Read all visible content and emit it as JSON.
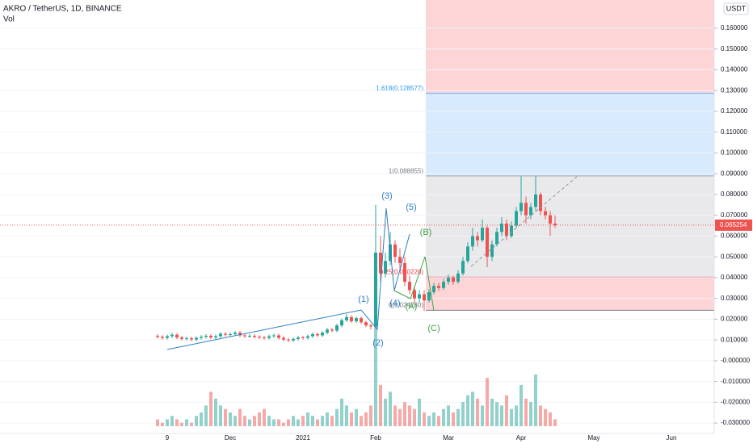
{
  "chart_data": {
    "type": "candlestick",
    "title": "AKRO / TetherUS, 1D, BINANCE",
    "subtitle": "Vol",
    "currency": "USDT",
    "up_color": "#26a69a",
    "down_color": "#ef5350",
    "categories": [
      null,
      null,
      "9",
      null,
      null,
      null,
      null,
      null,
      null,
      null,
      null,
      null,
      null,
      null,
      null,
      "Dec",
      null,
      null,
      null,
      null,
      null,
      null,
      null,
      null,
      null,
      null,
      null,
      null,
      null,
      null,
      "2021",
      null,
      null,
      null,
      null,
      null,
      null,
      null,
      null,
      null,
      null,
      null,
      null,
      null,
      null,
      "Feb",
      null,
      null,
      null,
      null,
      null,
      null,
      null,
      null,
      null,
      null,
      null,
      null,
      null,
      null,
      "Mar",
      null,
      null,
      null,
      null,
      null,
      null,
      null,
      null,
      null,
      null,
      null,
      null,
      null,
      null,
      "Apr",
      null,
      null,
      null,
      null,
      null,
      null,
      null,
      null,
      null,
      null,
      null,
      null,
      null,
      null,
      "May",
      null,
      null,
      null,
      null,
      null,
      null,
      null,
      null,
      null,
      null,
      null,
      null,
      null,
      null,
      null,
      "Jun"
    ],
    "ohlc": [
      [
        0.012,
        0.0128,
        0.0107,
        0.0115
      ],
      [
        0.0115,
        0.0123,
        0.0102,
        0.011
      ],
      [
        0.011,
        0.0126,
        0.0102,
        0.0118
      ],
      [
        0.0118,
        0.0133,
        0.011,
        0.0125
      ],
      [
        0.0125,
        0.0133,
        0.0104,
        0.0112
      ],
      [
        0.0112,
        0.012,
        0.0097,
        0.0105
      ],
      [
        0.0105,
        0.0116,
        0.0097,
        0.0108
      ],
      [
        0.0108,
        0.0116,
        0.0094,
        0.0102
      ],
      [
        0.0102,
        0.0118,
        0.0094,
        0.011
      ],
      [
        0.011,
        0.0123,
        0.0102,
        0.0115
      ],
      [
        0.0115,
        0.0128,
        0.0107,
        0.012
      ],
      [
        0.012,
        0.0128,
        0.0104,
        0.0112
      ],
      [
        0.0112,
        0.0126,
        0.0104,
        0.0118
      ],
      [
        0.0118,
        0.0138,
        0.011,
        0.013
      ],
      [
        0.013,
        0.0138,
        0.0117,
        0.0125
      ],
      [
        0.0125,
        0.0136,
        0.0117,
        0.0128
      ],
      [
        0.0128,
        0.0143,
        0.012,
        0.0135
      ],
      [
        0.0135,
        0.0143,
        0.0114,
        0.0122
      ],
      [
        0.0122,
        0.013,
        0.011,
        0.0118
      ],
      [
        0.0118,
        0.0128,
        0.011,
        0.012
      ],
      [
        0.012,
        0.0128,
        0.0107,
        0.0115
      ],
      [
        0.0115,
        0.0123,
        0.0104,
        0.0112
      ],
      [
        0.0112,
        0.012,
        0.0102,
        0.011
      ],
      [
        0.011,
        0.0126,
        0.0102,
        0.0118
      ],
      [
        0.0118,
        0.013,
        0.011,
        0.0122
      ],
      [
        0.0122,
        0.013,
        0.0102,
        0.011
      ],
      [
        0.011,
        0.0118,
        0.0094,
        0.0102
      ],
      [
        0.0102,
        0.011,
        0.009,
        0.0098
      ],
      [
        0.0098,
        0.0113,
        0.009,
        0.0105
      ],
      [
        0.0105,
        0.012,
        0.0097,
        0.0112
      ],
      [
        0.0112,
        0.012,
        0.0102,
        0.011
      ],
      [
        0.011,
        0.0126,
        0.0102,
        0.0118
      ],
      [
        0.0118,
        0.0136,
        0.011,
        0.0128
      ],
      [
        0.0128,
        0.0136,
        0.0114,
        0.0122
      ],
      [
        0.0122,
        0.0143,
        0.0114,
        0.0135
      ],
      [
        0.0135,
        0.0158,
        0.0127,
        0.015
      ],
      [
        0.015,
        0.0158,
        0.0137,
        0.0145
      ],
      [
        0.0145,
        0.0178,
        0.0137,
        0.017
      ],
      [
        0.017,
        0.0203,
        0.0162,
        0.0195
      ],
      [
        0.0195,
        0.0225,
        0.0187,
        0.021
      ],
      [
        0.021,
        0.0218,
        0.0182,
        0.019
      ],
      [
        0.019,
        0.0213,
        0.0182,
        0.0205
      ],
      [
        0.0205,
        0.0213,
        0.0177,
        0.0185
      ],
      [
        0.0185,
        0.0193,
        0.0162,
        0.017
      ],
      [
        0.017,
        0.0178,
        0.015,
        0.0165
      ],
      [
        0.0165,
        0.075,
        0.016,
        0.052
      ],
      [
        0.052,
        0.06,
        0.038,
        0.042
      ],
      [
        0.042,
        0.052,
        0.04,
        0.048
      ],
      [
        0.048,
        0.062,
        0.046,
        0.056
      ],
      [
        0.056,
        0.058,
        0.047,
        0.05
      ],
      [
        0.05,
        0.054,
        0.044,
        0.047
      ],
      [
        0.047,
        0.05,
        0.036,
        0.038
      ],
      [
        0.038,
        0.041,
        0.032,
        0.034
      ],
      [
        0.034,
        0.036,
        0.028,
        0.03
      ],
      [
        0.03,
        0.034,
        0.028,
        0.032
      ],
      [
        0.032,
        0.034,
        0.024,
        0.029
      ],
      [
        0.029,
        0.0345,
        0.028,
        0.033
      ],
      [
        0.033,
        0.0375,
        0.032,
        0.036
      ],
      [
        0.036,
        0.0375,
        0.0335,
        0.035
      ],
      [
        0.035,
        0.0395,
        0.034,
        0.038
      ],
      [
        0.038,
        0.0415,
        0.0365,
        0.04
      ],
      [
        0.04,
        0.041,
        0.0365,
        0.038
      ],
      [
        0.038,
        0.0435,
        0.037,
        0.042
      ],
      [
        0.042,
        0.05,
        0.041,
        0.048
      ],
      [
        0.048,
        0.057,
        0.047,
        0.055
      ],
      [
        0.055,
        0.064,
        0.053,
        0.06
      ],
      [
        0.06,
        0.062,
        0.055,
        0.058
      ],
      [
        0.058,
        0.068,
        0.057,
        0.064
      ],
      [
        0.064,
        0.065,
        0.045,
        0.05
      ],
      [
        0.05,
        0.058,
        0.048,
        0.056
      ],
      [
        0.056,
        0.064,
        0.055,
        0.062
      ],
      [
        0.062,
        0.069,
        0.06,
        0.066
      ],
      [
        0.066,
        0.068,
        0.058,
        0.06
      ],
      [
        0.06,
        0.067,
        0.059,
        0.065
      ],
      [
        0.065,
        0.074,
        0.064,
        0.072
      ],
      [
        0.072,
        0.0888,
        0.07,
        0.076
      ],
      [
        0.076,
        0.079,
        0.066,
        0.07
      ],
      [
        0.07,
        0.076,
        0.068,
        0.074
      ],
      [
        0.074,
        0.0888,
        0.072,
        0.08
      ],
      [
        0.08,
        0.081,
        0.07,
        0.072
      ],
      [
        0.072,
        0.074,
        0.068,
        0.07
      ],
      [
        0.07,
        0.072,
        0.06,
        0.066
      ],
      [
        0.066,
        0.07,
        0.064,
        0.0652
      ],
      null,
      null,
      null,
      null,
      null,
      null,
      null,
      null,
      null,
      null,
      null,
      null,
      null,
      null,
      null,
      null,
      null,
      null,
      null,
      null,
      null,
      null,
      null,
      null
    ],
    "volume": [
      2,
      1,
      2,
      3,
      2,
      1,
      2,
      1,
      3,
      4,
      6,
      10,
      8,
      6,
      5,
      4,
      3,
      5,
      3,
      2,
      3,
      4,
      5,
      3,
      2,
      2,
      1,
      2,
      3,
      2,
      3,
      4,
      3,
      2,
      3,
      4,
      3,
      5,
      8,
      6,
      4,
      5,
      3,
      4,
      6,
      30,
      12,
      8,
      10,
      6,
      5,
      7,
      6,
      5,
      8,
      4,
      3,
      4,
      3,
      5,
      6,
      4,
      5,
      7,
      9,
      10,
      8,
      6,
      14,
      8,
      7,
      6,
      9,
      5,
      6,
      12,
      8,
      7,
      15,
      6,
      5,
      4,
      2,
      null,
      null,
      null,
      null,
      null,
      null,
      null,
      null,
      null,
      null,
      null,
      null,
      null,
      null,
      null,
      null,
      null,
      null,
      null,
      null,
      null,
      null,
      null,
      null
    ],
    "last_price": 0.065254,
    "fib_levels": [
      {
        "value": 0.128577,
        "label": "1.618(0.128577)",
        "color": "#2196f3"
      },
      {
        "value": 0.088855,
        "label": "1(0.088855)",
        "color": "#787b86"
      },
      {
        "value": 0.04022,
        "label": "0.25(0.040220)",
        "color": "#f23645"
      },
      {
        "value": 0.02428,
        "label": "0(0.024280)",
        "color": "#787b86"
      }
    ],
    "waves": [
      "(1)",
      "(2)",
      "(3)",
      "(4)",
      "(5)",
      "(A)",
      "(B)",
      "(C)"
    ],
    "ylim": [
      -0.035,
      0.1736
    ],
    "yticks": [
      {
        "value": 0.16,
        "label": "0.160000"
      },
      {
        "value": 0.15,
        "label": "0.150000"
      },
      {
        "value": 0.14,
        "label": "0.140000"
      },
      {
        "value": 0.13,
        "label": "0.130000"
      },
      {
        "value": 0.12,
        "label": "0.120000"
      },
      {
        "value": 0.11,
        "label": "0.110000"
      },
      {
        "value": 0.1,
        "label": "0.100000"
      },
      {
        "value": 0.09,
        "label": "0.090000"
      },
      {
        "value": 0.08,
        "label": "0.080000"
      },
      {
        "value": 0.07,
        "label": "0.070000"
      },
      {
        "value": 0.06,
        "label": "0.060000"
      },
      {
        "value": 0.05,
        "label": "0.050000"
      },
      {
        "value": 0.04,
        "label": "0.040000"
      },
      {
        "value": 0.03,
        "label": "0.030000"
      },
      {
        "value": 0.02,
        "label": "0.020000"
      },
      {
        "value": 0.01,
        "label": "0.010000"
      },
      {
        "value": 0,
        "label": "-0.000000"
      },
      {
        "value": -0.01,
        "label": "-0.010000"
      },
      {
        "value": -0.02,
        "label": "-0.020000"
      },
      {
        "value": -0.03,
        "label": "-0.030000"
      }
    ],
    "grid": true
  }
}
